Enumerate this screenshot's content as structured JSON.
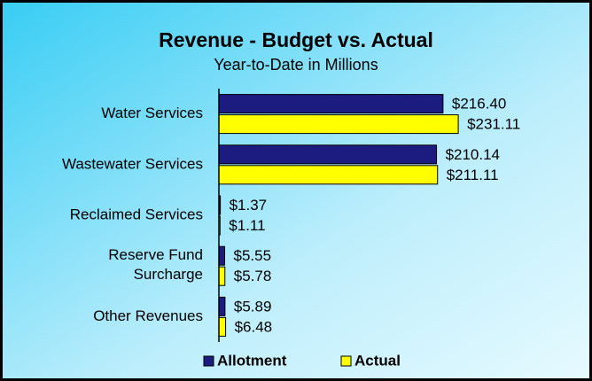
{
  "chart_data": {
    "type": "hbar",
    "title": "Revenue - Budget vs. Actual",
    "subtitle": "Year-to-Date in Millions",
    "categories": [
      "Water Services",
      "Wastewater Services",
      "Reclaimed Services",
      "Reserve Fund\nSurcharge",
      "Other Revenues"
    ],
    "series": [
      {
        "name": "Allotment",
        "color": "#1c1c80",
        "values": [
          216.4,
          210.14,
          1.37,
          5.55,
          5.89
        ],
        "value_labels": [
          "$216.40",
          "$210.14",
          "$1.37",
          "$5.55",
          "$5.89"
        ]
      },
      {
        "name": "Actual",
        "color": "#ffff00",
        "values": [
          231.11,
          211.11,
          1.11,
          5.78,
          6.48
        ],
        "value_labels": [
          "$231.11",
          "$211.11",
          "$1.11",
          "$5.78",
          "$6.48"
        ]
      }
    ],
    "xlim": [
      0,
      350
    ],
    "legend": "bottom"
  }
}
